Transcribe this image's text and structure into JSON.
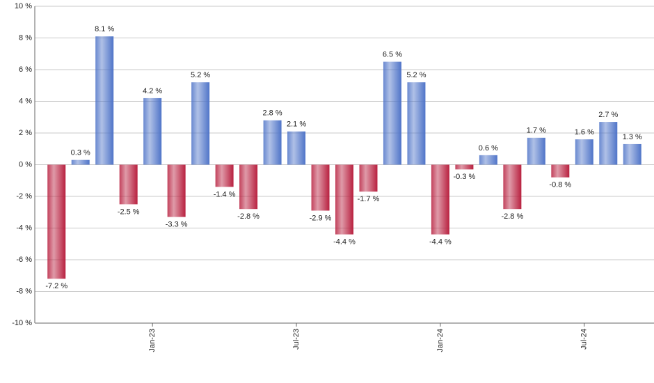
{
  "chart_data": {
    "type": "bar",
    "categories": [
      null,
      null,
      null,
      null,
      "Jan-23",
      null,
      null,
      null,
      null,
      null,
      "Jul-23",
      null,
      null,
      null,
      null,
      null,
      "Jan-24",
      null,
      null,
      null,
      null,
      null,
      "Jul-24",
      null,
      null
    ],
    "values": [
      -7.2,
      0.3,
      8.1,
      -2.5,
      4.2,
      -3.3,
      5.2,
      -1.4,
      -2.8,
      2.8,
      2.1,
      -2.9,
      -4.4,
      -1.7,
      6.5,
      5.2,
      -4.4,
      -0.3,
      0.6,
      -2.8,
      1.7,
      -0.8,
      1.6,
      2.7,
      1.3
    ],
    "value_labels": [
      "-7.2 %",
      "0.3 %",
      "8.1 %",
      "-2.5 %",
      "4.2 %",
      "-3.3 %",
      "5.2 %",
      "-1.4 %",
      "-2.8 %",
      "2.8 %",
      "2.1 %",
      "-2.9 %",
      "-4.4 %",
      "-1.7 %",
      "6.5 %",
      "5.2 %",
      "-4.4 %",
      "-0.3 %",
      "0.6 %",
      "-2.8 %",
      "1.7 %",
      "-0.8 %",
      "1.6 %",
      "2.7 %",
      "1.3 %"
    ],
    "color_positive": "#4f74c8",
    "color_negative": "#b8203f",
    "ylim": [
      -10,
      10
    ],
    "yticks": [
      {
        "value": -10,
        "label": "-10 %"
      },
      {
        "value": -8,
        "label": "-8 %"
      },
      {
        "value": -6,
        "label": "-6 %"
      },
      {
        "value": -4,
        "label": "-4 %"
      },
      {
        "value": -2,
        "label": "-2 %"
      },
      {
        "value": 0,
        "label": "0 %"
      },
      {
        "value": 2,
        "label": "2 %"
      },
      {
        "value": 4,
        "label": "4 %"
      },
      {
        "value": 6,
        "label": "6 %"
      },
      {
        "value": 8,
        "label": "8 %"
      },
      {
        "value": 10,
        "label": "10 %"
      }
    ],
    "grid": true
  }
}
